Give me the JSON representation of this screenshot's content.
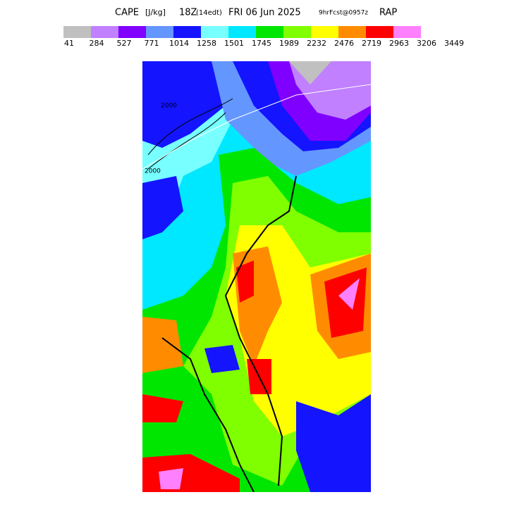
{
  "header": {
    "field": "CAPE",
    "units": "[J/kg]",
    "time": "18Z",
    "local_time": "(14edt)",
    "date": "FRI 06 Jun 2025",
    "forecast": "9hrFcst@0957z",
    "model": "RAP"
  },
  "colorbar": {
    "colors": [
      "#c0c0c0",
      "#c080ff",
      "#8000ff",
      "#6496ff",
      "#1414ff",
      "#78ffff",
      "#00e8ff",
      "#00e600",
      "#80ff00",
      "#ffff00",
      "#ff8c00",
      "#ff0000",
      "#ff80ff"
    ],
    "labels": [
      "41",
      "284",
      "527",
      "771",
      "1014",
      "1258",
      "1501",
      "1745",
      "1989",
      "2232",
      "2476",
      "2719",
      "2963",
      "3206",
      "3449"
    ]
  },
  "map": {
    "contour_labels": [
      "2000",
      "2000"
    ]
  }
}
